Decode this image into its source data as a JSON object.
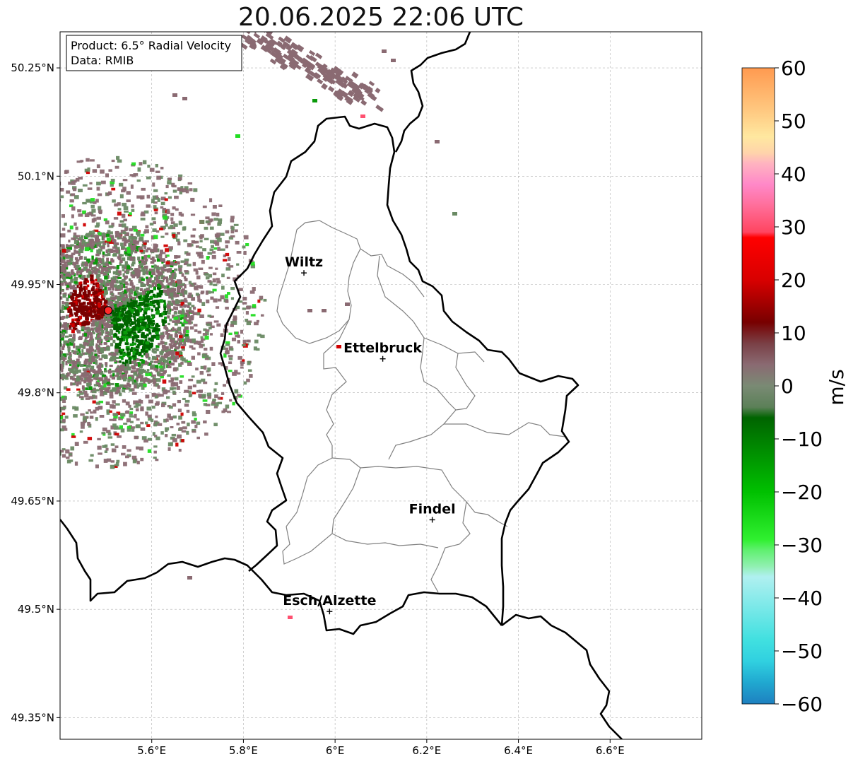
{
  "title": "20.06.2025 22:06 UTC",
  "info_box": {
    "product": "Product: 6.5° Radial Velocity",
    "data": "Data: RMIB"
  },
  "map": {
    "lon_range": [
      5.4,
      6.8
    ],
    "lat_range": [
      49.32,
      50.3
    ],
    "x_ticks": [
      {
        "value": 5.6,
        "label": "5.6°E"
      },
      {
        "value": 5.8,
        "label": "5.8°E"
      },
      {
        "value": 6.0,
        "label": "6°E"
      },
      {
        "value": 6.2,
        "label": "6.2°E"
      },
      {
        "value": 6.4,
        "label": "6.4°E"
      },
      {
        "value": 6.6,
        "label": "6.6°E"
      }
    ],
    "y_ticks": [
      {
        "value": 50.25,
        "label": "50.25°N"
      },
      {
        "value": 50.1,
        "label": "50.1°N"
      },
      {
        "value": 49.95,
        "label": "49.95°N"
      },
      {
        "value": 49.8,
        "label": "49.8°N"
      },
      {
        "value": 49.65,
        "label": "49.65°N"
      },
      {
        "value": 49.5,
        "label": "49.5°N"
      },
      {
        "value": 49.35,
        "label": "49.35°N"
      }
    ],
    "gridlines": true,
    "radar_site": {
      "lon": 5.505,
      "lat": 49.914
    },
    "cities": [
      {
        "name": "Wiltz",
        "lon": 5.932,
        "lat": 49.966
      },
      {
        "name": "Ettelbruck",
        "lon": 6.104,
        "lat": 49.847
      },
      {
        "name": "Findel",
        "lon": 6.212,
        "lat": 49.624
      },
      {
        "name": "Esch/Alzette",
        "lon": 5.988,
        "lat": 49.497
      }
    ]
  },
  "colorbar": {
    "label": "m/s",
    "min": -60,
    "max": 60,
    "ticks": [
      {
        "value": 60,
        "label": "60"
      },
      {
        "value": 50,
        "label": "50"
      },
      {
        "value": 40,
        "label": "40"
      },
      {
        "value": 30,
        "label": "30"
      },
      {
        "value": 20,
        "label": "20"
      },
      {
        "value": 10,
        "label": "10"
      },
      {
        "value": 0,
        "label": "0"
      },
      {
        "value": -10,
        "label": "−10"
      },
      {
        "value": -20,
        "label": "−20"
      },
      {
        "value": -30,
        "label": "−30"
      },
      {
        "value": -40,
        "label": "−40"
      },
      {
        "value": -50,
        "label": "−50"
      },
      {
        "value": -60,
        "label": "−60"
      }
    ],
    "color_stops": [
      {
        "value": 60,
        "color": "#ff9a50"
      },
      {
        "value": 52,
        "color": "#ffc880"
      },
      {
        "value": 47,
        "color": "#ffe8a0"
      },
      {
        "value": 44,
        "color": "#ffd4aa"
      },
      {
        "value": 42,
        "color": "#ffb4c0"
      },
      {
        "value": 38,
        "color": "#ff88c8"
      },
      {
        "value": 34,
        "color": "#ff6e9a"
      },
      {
        "value": 29,
        "color": "#ff4560"
      },
      {
        "value": 28,
        "color": "#ff0000"
      },
      {
        "value": 20,
        "color": "#d80000"
      },
      {
        "value": 12,
        "color": "#780000"
      },
      {
        "value": 8,
        "color": "#7a4046"
      },
      {
        "value": 4,
        "color": "#8a6a72"
      },
      {
        "value": 0,
        "color": "#7a8a74"
      },
      {
        "value": -4,
        "color": "#5c8058"
      },
      {
        "value": -6,
        "color": "#006400"
      },
      {
        "value": -20,
        "color": "#00c000"
      },
      {
        "value": -29,
        "color": "#30f030"
      },
      {
        "value": -31,
        "color": "#60f070"
      },
      {
        "value": -34,
        "color": "#90f0b0"
      },
      {
        "value": -36,
        "color": "#b0f0f0"
      },
      {
        "value": -48,
        "color": "#40e0e0"
      },
      {
        "value": -52,
        "color": "#30d0e0"
      },
      {
        "value": -56,
        "color": "#20a8d0"
      },
      {
        "value": -60,
        "color": "#1e80c0"
      }
    ]
  }
}
